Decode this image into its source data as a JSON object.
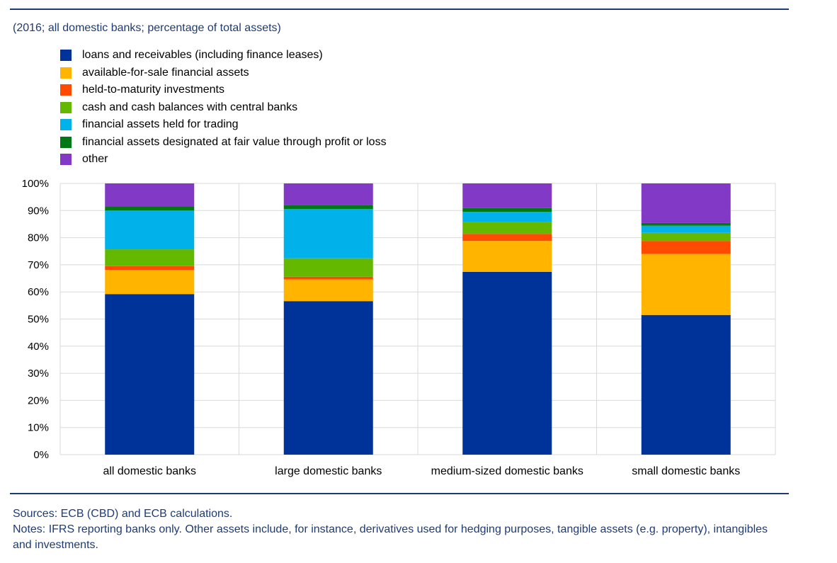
{
  "subtitle": "(2016; all domestic banks; percentage of total assets)",
  "sources": "Sources: ECB (CBD) and ECB calculations.",
  "notes": "Notes: IFRS reporting banks only. Other assets include, for instance, derivatives used for hedging purposes, tangible assets (e.g. property), intangibles and investments.",
  "colors": {
    "rule": "#1f3b73",
    "grid": "#d9d9d9"
  },
  "chart_data": {
    "type": "bar",
    "stacked": true,
    "title": "",
    "xlabel": "",
    "ylabel": "",
    "ylim": [
      0,
      100
    ],
    "y_ticks": [
      "0%",
      "10%",
      "20%",
      "30%",
      "40%",
      "50%",
      "60%",
      "70%",
      "80%",
      "90%",
      "100%"
    ],
    "grid": true,
    "legend_position": "top-left",
    "categories": [
      "all domestic banks",
      "large domestic banks",
      "medium-sized domestic banks",
      "small domestic banks"
    ],
    "series": [
      {
        "name": "loans and receivables (including finance leases)",
        "color": "#003399",
        "values": [
          59.2,
          56.6,
          67.4,
          51.5
        ]
      },
      {
        "name": "available-for-sale financial assets",
        "color": "#ffb400",
        "values": [
          8.9,
          8.0,
          11.4,
          22.5
        ]
      },
      {
        "name": "held-to-maturity investments",
        "color": "#ff4b00",
        "values": [
          1.4,
          1.0,
          2.6,
          4.8
        ]
      },
      {
        "name": "cash and cash balances with central banks",
        "color": "#65b800",
        "values": [
          6.2,
          6.8,
          4.4,
          3.0
        ]
      },
      {
        "name": "financial assets held for trading",
        "color": "#00b1ea",
        "values": [
          14.3,
          18.2,
          3.7,
          2.6
        ]
      },
      {
        "name": "financial assets designated at fair value through profit or loss",
        "color": "#007816",
        "values": [
          1.5,
          1.5,
          1.4,
          1.0
        ]
      },
      {
        "name": "other",
        "color": "#8139c6",
        "values": [
          8.5,
          7.9,
          9.1,
          14.6
        ]
      }
    ]
  }
}
